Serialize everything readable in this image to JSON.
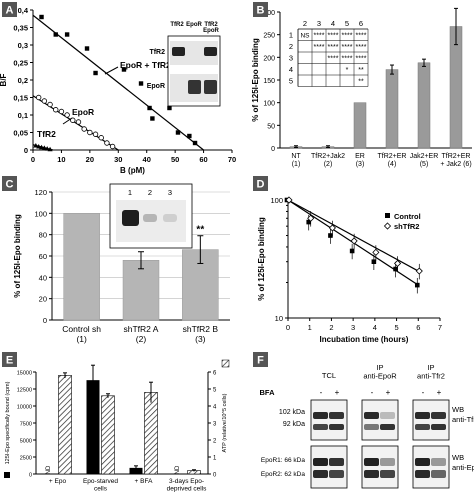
{
  "chart_data": [
    {
      "panel": "A",
      "type": "scatter",
      "xlabel": "B (pM)",
      "ylabel": "B/F",
      "xlim": [
        0,
        70
      ],
      "ylim": [
        0,
        0.4
      ],
      "xticks": [
        "0",
        "10",
        "20",
        "30",
        "40",
        "50",
        "60",
        "70"
      ],
      "yticks": [
        "0",
        "0,05",
        "0,1",
        "0,15",
        "0,2",
        "0,25",
        "0,3",
        "0,35",
        "0,4"
      ],
      "series": [
        {
          "name": "EpoR + TfR2",
          "marker": "filled-square",
          "x": [
            3,
            8,
            12,
            19,
            22,
            32,
            38,
            41,
            42,
            48,
            51,
            55,
            57
          ],
          "y": [
            0.38,
            0.33,
            0.33,
            0.29,
            0.22,
            0.23,
            0.19,
            0.12,
            0.09,
            0.12,
            0.05,
            0.04,
            0.02
          ],
          "fit": [
            [
              0,
              0.385
            ],
            [
              60,
              0.0
            ]
          ]
        },
        {
          "name": "EpoR",
          "marker": "open-circle",
          "x": [
            2,
            4,
            6,
            8,
            10,
            12,
            14,
            16,
            18,
            20,
            22,
            24,
            26,
            28
          ],
          "y": [
            0.15,
            0.14,
            0.13,
            0.115,
            0.11,
            0.1,
            0.085,
            0.08,
            0.06,
            0.05,
            0.045,
            0.035,
            0.02,
            0.01
          ],
          "fit": [
            [
              0,
              0.155
            ],
            [
              30,
              0.0
            ]
          ]
        },
        {
          "name": "TfR2",
          "marker": "filled-triangle",
          "x": [
            1,
            2,
            3,
            4,
            5,
            6
          ],
          "y": [
            0.013,
            0.01,
            0.008,
            0.006,
            0.004,
            0.002
          ],
          "fit": [
            [
              0,
              0.015
            ],
            [
              7,
              0.0
            ]
          ]
        }
      ],
      "annotations": [
        "EpoR + TfR2",
        "EpoR",
        "TfR2"
      ],
      "inset_blot": {
        "lanes": [
          "TfR2",
          "EpoR",
          "TfR2\nEpoR"
        ],
        "rows": [
          "TfR2",
          "EpoR"
        ]
      }
    },
    {
      "panel": "B",
      "type": "bar",
      "ylabel": "% of 125I-Epo binding",
      "ylim": [
        0,
        300
      ],
      "yticks": [
        "0",
        "50",
        "100",
        "150",
        "200",
        "250",
        "300"
      ],
      "categories": [
        "NT\n(1)",
        "TfR2+Jak2\n(2)",
        "ER\n(3)",
        "TfR2+ER\n(4)",
        "Jak2+ER\n(5)",
        "TfR2+ER\n+ Jak2 (6)"
      ],
      "values": [
        3,
        3,
        100,
        173,
        188,
        268
      ],
      "errors": [
        2,
        2,
        0,
        10,
        8,
        40
      ],
      "significance_table": {
        "cols": [
          "2",
          "3",
          "4",
          "5",
          "6"
        ],
        "rows": [
          {
            "label": "1",
            "cells": [
              "NS",
              "****",
              "****",
              "****",
              "****"
            ]
          },
          {
            "label": "2",
            "cells": [
              "",
              "****",
              "****",
              "****",
              "****"
            ]
          },
          {
            "label": "3",
            "cells": [
              "",
              "",
              "****",
              "****",
              "****"
            ]
          },
          {
            "label": "4",
            "cells": [
              "",
              "",
              "",
              "*",
              "**"
            ]
          },
          {
            "label": "5",
            "cells": [
              "",
              "",
              "",
              "",
              "**"
            ]
          }
        ]
      }
    },
    {
      "panel": "C",
      "type": "bar",
      "ylabel": "% of 125I-Epo binding",
      "ylim": [
        0,
        120
      ],
      "yticks": [
        "0",
        "20",
        "40",
        "60",
        "80",
        "100",
        "120"
      ],
      "categories": [
        "Control sh\n(1)",
        "shTfR2 A\n(2)",
        "shTfR2 B\n(3)"
      ],
      "values": [
        100,
        56,
        66
      ],
      "errors": [
        0,
        8,
        13
      ],
      "stars": [
        "",
        "**",
        "**"
      ],
      "inset_blot": {
        "lanes": [
          "1",
          "2",
          "3"
        ]
      }
    },
    {
      "panel": "D",
      "type": "line",
      "scale": "log",
      "xlabel": "Incubation time (hours)",
      "ylabel": "% of 125I-Epo binding",
      "xlim": [
        0,
        7
      ],
      "ylim": [
        10,
        100
      ],
      "xticks": [
        "0",
        "1",
        "2",
        "3",
        "4",
        "5",
        "6",
        "7"
      ],
      "yticks": [
        "10",
        "100"
      ],
      "legend": "top-right",
      "series": [
        {
          "name": "Control",
          "marker": "filled-square",
          "x": [
            0,
            1,
            2,
            3,
            4,
            5,
            6
          ],
          "y": [
            100,
            65,
            50,
            37,
            30,
            26,
            19
          ]
        },
        {
          "name": "shTfR2",
          "marker": "open-diamond",
          "x": [
            0,
            1,
            2,
            3,
            4,
            5,
            6
          ],
          "y": [
            100,
            70,
            58,
            45,
            36,
            29,
            25
          ]
        }
      ]
    },
    {
      "panel": "E",
      "type": "bar",
      "ylabel_left": "125I-Epo specifically bound (cpm)",
      "ylabel_right": "ATP (relative/10^5 cells)",
      "ylim_left": [
        0,
        15000
      ],
      "ylim_right": [
        0,
        6
      ],
      "yticks_left": [
        "0",
        "2500",
        "5000",
        "7500",
        "10000",
        "12500",
        "15000"
      ],
      "yticks_right": [
        "0",
        "1",
        "2",
        "3",
        "4",
        "5",
        "6"
      ],
      "categories": [
        "+ Epo",
        "Epo-starved\ncells",
        "+ BFA",
        "3-days Epo-\ndeprived cells"
      ],
      "series": [
        {
          "name": "Epo binding",
          "fill": "black",
          "values": [
            0,
            13800,
            900,
            0
          ],
          "errors": [
            0,
            2200,
            300,
            0
          ]
        },
        {
          "name": "ATP",
          "fill": "hatched",
          "values": [
            5.8,
            4.6,
            4.8,
            0.2
          ],
          "errors": [
            0.15,
            0.12,
            0.6,
            0.05
          ]
        }
      ],
      "nd_labels": [
        "ND",
        "",
        "",
        "ND"
      ]
    },
    {
      "panel": "F",
      "type": "table",
      "groups": [
        "TCL",
        "IP\nanti-EpoR",
        "IP\nanti-Tfr2"
      ],
      "bfa": [
        "BFA",
        "-",
        "+",
        "-",
        "+",
        "-",
        "+"
      ],
      "top_markers": [
        "102 kDa",
        "92 kDa"
      ],
      "bottom_markers": [
        "EpoR1: 66 kDa",
        "EpoR2: 62 kDa"
      ],
      "wb_top": "WB\nanti-TfR2",
      "wb_bottom": "WB\nanti-EpoR"
    }
  ],
  "panel_labels": [
    "A",
    "B",
    "C",
    "D",
    "E",
    "F"
  ]
}
